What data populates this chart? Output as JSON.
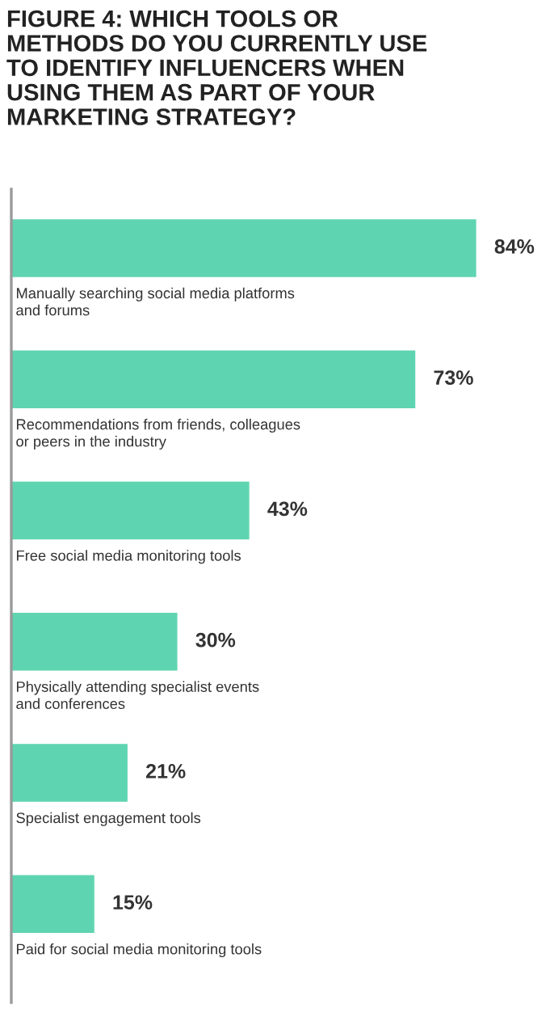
{
  "chart_data": {
    "type": "bar",
    "orientation": "horizontal",
    "title": "FIGURE 4: WHICH TOOLS OR\nMETHODS DO YOU CURRENTLY USE\nTO IDENTIFY INFLUENCERS WHEN\nUSING THEM AS PART OF YOUR\nMARKETING STRATEGY?",
    "categories": [
      "Manually searching social media platforms\nand forums",
      "Recommendations from friends, colleagues\nor peers in the industry",
      "Free social media monitoring tools",
      "Physically attending specialist events\nand conferences",
      "Specialist engagement tools",
      "Paid for social media monitoring tools"
    ],
    "values": [
      84,
      73,
      43,
      30,
      21,
      15
    ],
    "value_labels": [
      "84%",
      "73%",
      "43%",
      "30%",
      "21%",
      "15%"
    ],
    "color": "#5fd4b0"
  }
}
